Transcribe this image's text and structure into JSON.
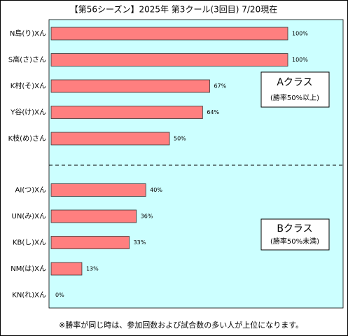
{
  "chart_data": {
    "type": "barh",
    "title": "【第56シーズン】2025年 第3クール(3回目) 7/20現在",
    "categories": [
      "N島(り)Xん",
      "S高(さ)さん",
      "K村(そ)Xん",
      "Y谷(け)Xん",
      "K枝(め)さん",
      "AI(つ)Xん",
      "UN(み)Xん",
      "KB(し)Xん",
      "NM(は)Xん",
      "KN(れ)Xん"
    ],
    "values": [
      100,
      100,
      67,
      64,
      50,
      40,
      36,
      33,
      13,
      0
    ],
    "value_labels": [
      "100%",
      "100%",
      "67%",
      "64%",
      "50%",
      "40%",
      "36%",
      "33%",
      "13%",
      "0%"
    ],
    "color": "#ff7f7f",
    "annotations": [
      {
        "title": "Aクラス",
        "note": "(勝率50%以上)"
      },
      {
        "title": "Bクラス",
        "note": "(勝率50%未満)"
      }
    ],
    "footnote": "※勝率が同じ時は、参加回数および試合数の多い人が上位になります。"
  }
}
